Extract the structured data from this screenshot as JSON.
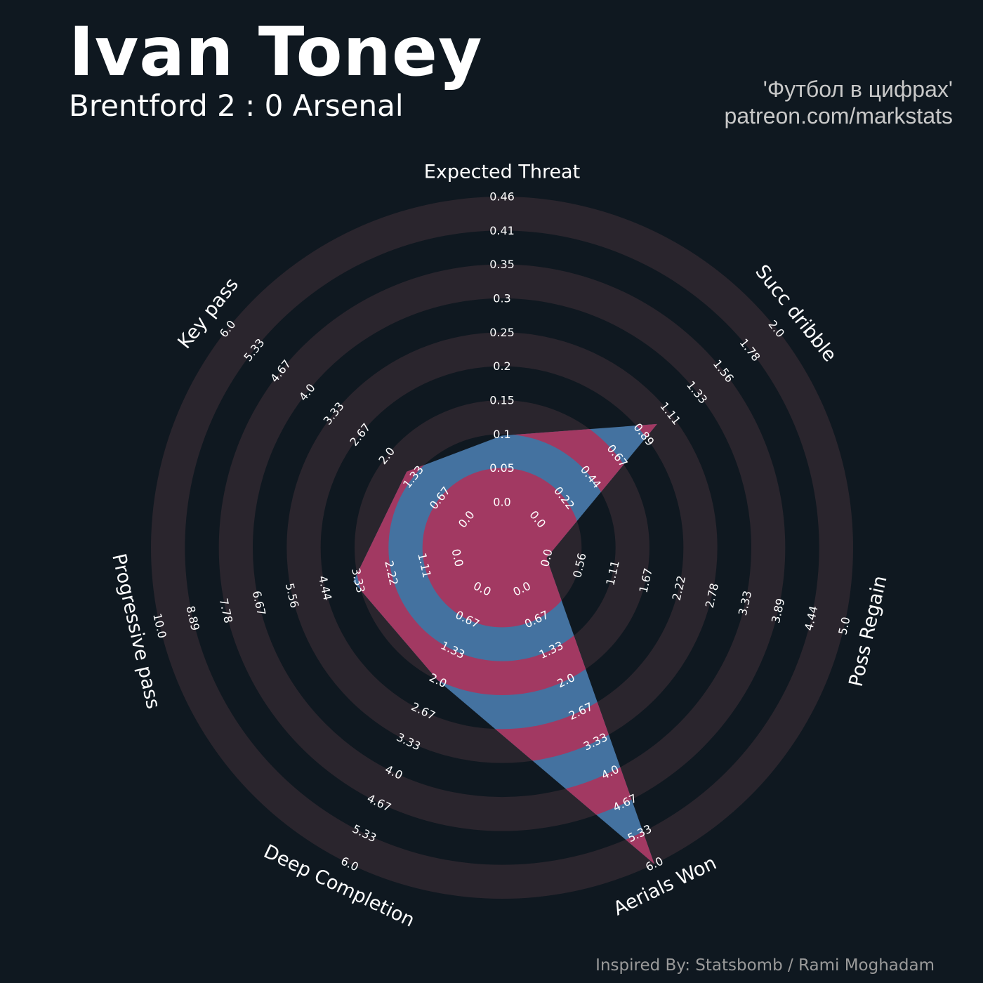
{
  "header": {
    "title": "Ivan Toney",
    "subtitle": "Brentford 2 : 0 Arsenal",
    "credit_line1": "'Футбол в цифрах'",
    "credit_line2": "patreon.com/markstats"
  },
  "footer": {
    "text": "Inspired By: Statsbomb / Rami Moghadam"
  },
  "colors": {
    "background": "#0f1820",
    "band": "#2a252d",
    "polygon_blue": "#4472a0",
    "polygon_red": "#a23962",
    "text": "#ffffff"
  },
  "chart_data": {
    "type": "radar",
    "title": "",
    "axes": [
      {
        "label": "Expected Threat",
        "min": 0.0,
        "max": 0.46,
        "ticks": [
          "0.0",
          "0.05",
          "0.1",
          "0.15",
          "0.2",
          "0.25",
          "0.3",
          "0.35",
          "0.41",
          "0.46"
        ],
        "value": 0.1
      },
      {
        "label": "Succ dribble",
        "min": 0.0,
        "max": 2.0,
        "ticks": [
          "0.0",
          "0.22",
          "0.44",
          "0.67",
          "0.89",
          "1.11",
          "1.33",
          "1.56",
          "1.78",
          "2.0"
        ],
        "value": 1.0
      },
      {
        "label": "Poss Regain",
        "min": 0.0,
        "max": 5.0,
        "ticks": [
          "0.0",
          "0.56",
          "1.11",
          "1.67",
          "2.22",
          "2.78",
          "3.33",
          "3.89",
          "4.44",
          "5.0"
        ],
        "value": 0.0
      },
      {
        "label": "Aerials Won",
        "min": 0.0,
        "max": 6.0,
        "ticks": [
          "0.0",
          "0.67",
          "1.33",
          "2.0",
          "2.67",
          "3.33",
          "4.0",
          "4.67",
          "5.33",
          "6.0"
        ],
        "value": 6.0
      },
      {
        "label": "Deep Completion",
        "min": 0.0,
        "max": 6.0,
        "ticks": [
          "0.0",
          "0.67",
          "1.33",
          "2.0",
          "2.67",
          "3.33",
          "4.0",
          "4.67",
          "5.33",
          "6.0"
        ],
        "value": 2.0
      },
      {
        "label": "Progressive pass",
        "min": 0.0,
        "max": 10.0,
        "ticks": [
          "0.0",
          "1.11",
          "2.22",
          "3.33",
          "4.44",
          "5.56",
          "6.67",
          "7.78",
          "8.89",
          "10.0"
        ],
        "value": 3.5
      },
      {
        "label": "Key pass",
        "min": 0.0,
        "max": 6.0,
        "ticks": [
          "0.0",
          "0.67",
          "1.33",
          "2.0",
          "2.67",
          "3.33",
          "4.0",
          "4.67",
          "5.33",
          "6.0"
        ],
        "value": 1.5
      }
    ],
    "legend": "none",
    "grid": "concentric bands"
  }
}
